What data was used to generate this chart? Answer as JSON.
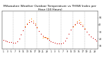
{
  "title": "Milwaukee Weather Outdoor Temperature vs THSW Index per Hour (24 Hours)",
  "title_fontsize": 3.2,
  "background_color": "#ffffff",
  "grid_color": "#888888",
  "figsize": [
    1.6,
    0.87
  ],
  "dpi": 100,
  "temp_color": "#cc0000",
  "thsw_color": "#ff8800",
  "black_color": "#000000",
  "marker_size": 0.8,
  "ylim": [
    5,
    60
  ],
  "xlim": [
    0.5,
    48.5
  ],
  "xlabel_fontsize": 2.2,
  "ylabel_fontsize": 2.2,
  "hours": [
    1,
    2,
    3,
    4,
    5,
    6,
    7,
    8,
    9,
    10,
    11,
    12,
    13,
    14,
    15,
    16,
    17,
    18,
    19,
    20,
    21,
    22,
    23,
    24,
    25,
    26,
    27,
    28,
    29,
    30,
    31,
    32,
    33,
    34,
    35,
    36,
    37,
    38,
    39,
    40,
    41,
    42,
    43,
    44,
    45,
    46,
    47,
    48
  ],
  "temp_values": [
    18,
    17,
    16,
    15,
    15,
    14,
    14,
    16,
    20,
    26,
    32,
    37,
    41,
    44,
    45,
    43,
    40,
    36,
    31,
    27,
    24,
    22,
    20,
    18,
    16,
    15,
    14,
    13,
    13,
    13,
    14,
    17,
    21,
    27,
    33,
    38,
    41,
    43,
    43,
    41,
    38,
    34,
    30,
    26,
    23,
    21,
    19,
    17
  ],
  "thsw_values": [
    null,
    null,
    null,
    null,
    null,
    null,
    null,
    null,
    null,
    null,
    null,
    38,
    42,
    47,
    49,
    46,
    42,
    37,
    null,
    null,
    null,
    null,
    null,
    null,
    null,
    null,
    null,
    null,
    null,
    null,
    null,
    null,
    null,
    null,
    null,
    37,
    40,
    45,
    47,
    44,
    40,
    35,
    null,
    null,
    null,
    null,
    null,
    null
  ],
  "orange_line": [
    null,
    null,
    null,
    null,
    null,
    null,
    null,
    null,
    null,
    null,
    null,
    null,
    null,
    null,
    null,
    null,
    null,
    null,
    null,
    null,
    21,
    22,
    21,
    20,
    null,
    null,
    null,
    null,
    null,
    null,
    null,
    null,
    null,
    null,
    null,
    null,
    null,
    null,
    null,
    null,
    null,
    null,
    null,
    null,
    null,
    null,
    null,
    null
  ],
  "vline_positions": [
    6,
    12,
    18,
    24,
    30,
    36,
    42
  ],
  "xtick_positions": [
    1,
    3,
    5,
    7,
    9,
    11,
    13,
    15,
    17,
    19,
    21,
    23,
    25,
    27,
    29,
    31,
    33,
    35,
    37,
    39,
    41,
    43,
    45,
    47
  ],
  "xtick_labels": [
    "1",
    "3",
    "5",
    "7",
    "9",
    "11",
    "13",
    "15",
    "17",
    "19",
    "21",
    "23",
    "1",
    "3",
    "5",
    "7",
    "9",
    "11",
    "13",
    "15",
    "17",
    "19",
    "21",
    "23"
  ],
  "ytick_positions": [
    10,
    20,
    30,
    40,
    50
  ],
  "ytick_labels": [
    "10",
    "20",
    "30",
    "40",
    "50"
  ]
}
